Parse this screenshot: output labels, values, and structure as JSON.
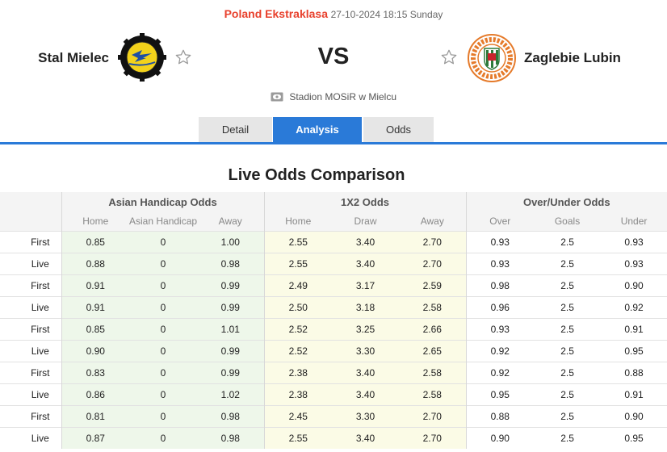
{
  "match": {
    "league": "Poland Ekstraklasa",
    "datetime": "27-10-2024 18:15 Sunday",
    "home_team": "Stal Mielec",
    "away_team": "Zaglebie Lubin",
    "vs": "VS",
    "stadium": "Stadion MOSiR w Mielcu",
    "icons": {
      "home_favorite": "star-icon",
      "away_favorite": "star-icon",
      "stadium": "stadium-icon"
    }
  },
  "tabs": [
    {
      "label": "Detail",
      "active": false
    },
    {
      "label": "Analysis",
      "active": true
    },
    {
      "label": "Odds",
      "active": false
    }
  ],
  "section_title": "Live Odds Comparison",
  "odds_table": {
    "groups": [
      "Asian Handicap Odds",
      "1X2 Odds",
      "Over/Under Odds"
    ],
    "columns": [
      "Home",
      "Asian Handicap",
      "Away",
      "Home",
      "Draw",
      "Away",
      "Over",
      "Goals",
      "Under"
    ],
    "rows": [
      [
        "First",
        "0.85",
        "0",
        "1.00",
        "2.55",
        "3.40",
        "2.70",
        "0.93",
        "2.5",
        "0.93"
      ],
      [
        "Live",
        "0.88",
        "0",
        "0.98",
        "2.55",
        "3.40",
        "2.70",
        "0.93",
        "2.5",
        "0.93"
      ],
      [
        "First",
        "0.91",
        "0",
        "0.99",
        "2.49",
        "3.17",
        "2.59",
        "0.98",
        "2.5",
        "0.90"
      ],
      [
        "Live",
        "0.91",
        "0",
        "0.99",
        "2.50",
        "3.18",
        "2.58",
        "0.96",
        "2.5",
        "0.92"
      ],
      [
        "First",
        "0.85",
        "0",
        "1.01",
        "2.52",
        "3.25",
        "2.66",
        "0.93",
        "2.5",
        "0.91"
      ],
      [
        "Live",
        "0.90",
        "0",
        "0.99",
        "2.52",
        "3.30",
        "2.65",
        "0.92",
        "2.5",
        "0.95"
      ],
      [
        "First",
        "0.83",
        "0",
        "0.99",
        "2.38",
        "3.40",
        "2.58",
        "0.92",
        "2.5",
        "0.88"
      ],
      [
        "Live",
        "0.86",
        "0",
        "1.02",
        "2.38",
        "3.40",
        "2.58",
        "0.95",
        "2.5",
        "0.91"
      ],
      [
        "First",
        "0.81",
        "0",
        "0.98",
        "2.45",
        "3.30",
        "2.70",
        "0.88",
        "2.5",
        "0.90"
      ],
      [
        "Live",
        "0.87",
        "0",
        "0.98",
        "2.55",
        "3.40",
        "2.70",
        "0.90",
        "2.5",
        "0.95"
      ]
    ]
  },
  "colors": {
    "league": "#e8412d",
    "tab_active": "#2a7ad8",
    "asian_handicap_bg": "#eef7ea",
    "x12_bg": "#fbfbe6"
  }
}
